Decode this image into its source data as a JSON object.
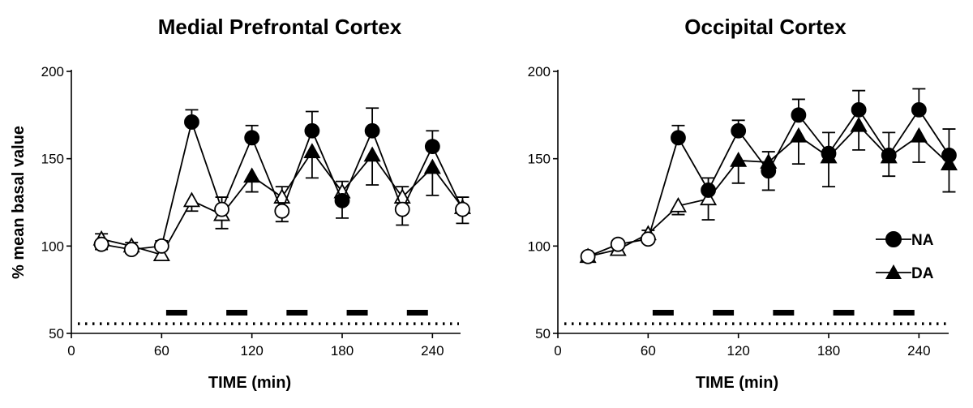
{
  "chart_data": [
    {
      "type": "line",
      "title": "Medial Prefrontal Cortex",
      "xlabel": "TIME (min)",
      "ylabel": "% mean basal value",
      "xlim": [
        0,
        270
      ],
      "ylim": [
        50,
        200
      ],
      "xticks": [
        0,
        60,
        120,
        180,
        240
      ],
      "yticks": [
        50,
        100,
        150,
        200
      ],
      "grid": false,
      "x": [
        20,
        40,
        60,
        80,
        100,
        120,
        140,
        160,
        180,
        200,
        220,
        240,
        260
      ],
      "series": [
        {
          "name": "NA",
          "marker": "circle",
          "values": [
            101,
            98,
            100,
            171,
            121,
            162,
            120,
            166,
            126,
            166,
            121,
            157,
            121
          ],
          "errors": [
            3,
            2,
            3,
            7,
            7,
            7,
            6,
            11,
            10,
            13,
            9,
            9,
            8
          ],
          "filled": [
            false,
            false,
            false,
            true,
            false,
            true,
            false,
            true,
            true,
            true,
            false,
            true,
            false
          ]
        },
        {
          "name": "DA",
          "marker": "triangle",
          "values": [
            104,
            100,
            95,
            126,
            118,
            140,
            128,
            154,
            131,
            152,
            128,
            145,
            122
          ],
          "errors": [
            3,
            2,
            3,
            6,
            8,
            9,
            6,
            15,
            6,
            17,
            6,
            16,
            6
          ],
          "filled": [
            false,
            false,
            false,
            false,
            false,
            true,
            false,
            true,
            false,
            true,
            false,
            true,
            false
          ]
        }
      ],
      "bars": [
        [
          60,
          80
        ],
        [
          100,
          120
        ],
        [
          140,
          160
        ],
        [
          180,
          200
        ],
        [
          220,
          240
        ]
      ],
      "baseline": 56
    },
    {
      "type": "line",
      "title": "Occipital Cortex",
      "xlabel": "TIME (min)",
      "ylabel": "",
      "xlim": [
        0,
        270
      ],
      "ylim": [
        50,
        200
      ],
      "xticks": [
        0,
        60,
        120,
        180,
        240
      ],
      "yticks": [
        50,
        100,
        150,
        200
      ],
      "grid": false,
      "legend": "right",
      "x": [
        20,
        40,
        60,
        80,
        100,
        120,
        140,
        160,
        180,
        200,
        220,
        240,
        260
      ],
      "series": [
        {
          "name": "NA",
          "marker": "circle",
          "values": [
            94,
            101,
            104,
            162,
            132,
            166,
            143,
            175,
            153,
            178,
            152,
            178,
            152
          ],
          "errors": [
            2,
            2,
            2,
            7,
            7,
            6,
            11,
            9,
            12,
            11,
            13,
            12,
            15
          ],
          "filled": [
            false,
            false,
            false,
            true,
            true,
            true,
            true,
            true,
            true,
            true,
            true,
            true,
            true
          ]
        },
        {
          "name": "DA",
          "marker": "triangle",
          "values": [
            94,
            98,
            107,
            123,
            127,
            149,
            148,
            163,
            151,
            169,
            151,
            163,
            147
          ],
          "errors": [
            2,
            2,
            2,
            5,
            12,
            13,
            6,
            16,
            17,
            14,
            11,
            15,
            16
          ],
          "filled": [
            false,
            false,
            false,
            false,
            false,
            true,
            true,
            true,
            true,
            true,
            true,
            true,
            true
          ]
        }
      ],
      "bars": [
        [
          60,
          80
        ],
        [
          100,
          120
        ],
        [
          140,
          160
        ],
        [
          180,
          200
        ],
        [
          220,
          240
        ]
      ],
      "baseline": 56
    }
  ]
}
